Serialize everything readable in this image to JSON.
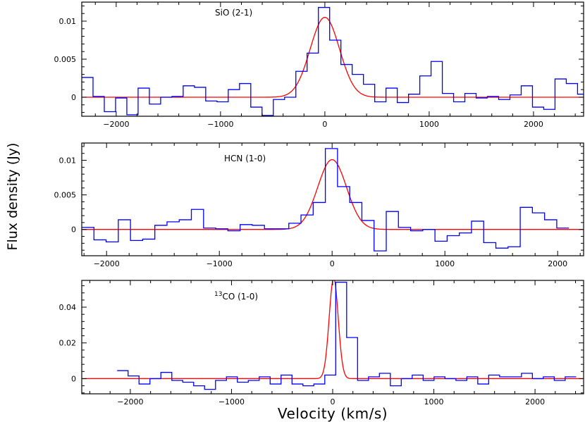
{
  "figure": {
    "ylabel": "Flux density (Jy)",
    "xlabel": "Velocity (km/s)"
  },
  "colors": {
    "spectrum": "#0000ff",
    "fit": "#ff0000"
  },
  "chart_data": [
    {
      "type": "line",
      "title": "SiO (2-1)",
      "xlim": [
        -2330,
        2480
      ],
      "ylim": [
        -0.0025,
        0.0125
      ],
      "xticks": [
        -2000,
        -1000,
        0,
        1000,
        2000
      ],
      "xtick_labels": [
        "−2000",
        "−1000",
        "0",
        "1000",
        "2000"
      ],
      "yticks": [
        0,
        0.005,
        0.01
      ],
      "ytick_labels": [
        "0",
        "0.005",
        "0.01"
      ],
      "channel_width": 108,
      "channel_start": -2330,
      "series": [
        {
          "style": "steps",
          "values": [
            0.0026,
            0.0001,
            -0.0019,
            -0.0001,
            -0.0023,
            0.0012,
            -0.0009,
            0.0,
            0.0001,
            0.0015,
            0.0013,
            -0.0005,
            -0.0006,
            0.001,
            0.0018,
            -0.0013,
            -0.0024,
            -0.0003,
            0.0,
            0.0034,
            0.0058,
            0.0118,
            0.0075,
            0.0043,
            0.003,
            0.0017,
            -0.0006,
            0.0012,
            -0.0007,
            0.0004,
            0.0028,
            0.0047,
            0.0005,
            -0.0006,
            0.0005,
            -0.0001,
            0.0001,
            -0.0003,
            0.0003,
            0.0015,
            -0.0013,
            -0.0016,
            0.0024,
            0.0018,
            0.0004,
            -0.0025,
            0.0012
          ]
        },
        {
          "style": "gaussian",
          "amplitude": 0.0105,
          "center": 0,
          "fwhm": 330
        }
      ]
    },
    {
      "type": "line",
      "title": "HCN (1-0)",
      "xlim": [
        -2220,
        2230
      ],
      "ylim": [
        -0.0038,
        0.0125
      ],
      "xticks": [
        -2000,
        -1000,
        0,
        1000,
        2000
      ],
      "xtick_labels": [
        "−2000",
        "−1000",
        "0",
        "1000",
        "2000"
      ],
      "yticks": [
        0,
        0.005,
        0.01
      ],
      "ytick_labels": [
        "0",
        "0.005",
        "0.01"
      ],
      "channel_width": 108,
      "channel_start": -2220,
      "series": [
        {
          "style": "steps",
          "values": [
            0.0003,
            -0.0015,
            -0.0018,
            0.0014,
            -0.0016,
            -0.0014,
            0.0006,
            0.0011,
            0.0014,
            0.0029,
            0.0002,
            0.0001,
            -0.0002,
            0.0007,
            0.0006,
            0.0001,
            0.0001,
            0.0009,
            0.0021,
            0.0039,
            0.0117,
            0.0062,
            0.0039,
            0.0013,
            -0.0031,
            0.0026,
            0.0003,
            -0.0002,
            0.0,
            -0.0017,
            -0.0009,
            -0.0005,
            0.0012,
            -0.0019,
            -0.0027,
            -0.0025,
            0.0032,
            0.0024,
            0.0014,
            0.0002
          ]
        },
        {
          "style": "gaussian",
          "amplitude": 0.0101,
          "center": 0,
          "fwhm": 300
        }
      ]
    },
    {
      "type": "line",
      "title": "13CO (1-0)",
      "title_superscript": "13",
      "title_main": "CO (1-0)",
      "xlim": [
        -2480,
        2480
      ],
      "ylim": [
        -0.0085,
        0.055
      ],
      "xticks": [
        -2000,
        -1000,
        0,
        1000,
        2000
      ],
      "xtick_labels": [
        "−2000",
        "−1000",
        "0",
        "1000",
        "2000"
      ],
      "yticks": [
        0,
        0.02,
        0.04
      ],
      "ytick_labels": [
        "0",
        "0.02",
        "0.04"
      ],
      "channel_width": 108,
      "channel_start": -2130,
      "series": [
        {
          "style": "steps",
          "values": [
            0.0045,
            0.0015,
            -0.003,
            0.0,
            0.0035,
            -0.001,
            -0.002,
            -0.004,
            -0.006,
            -0.001,
            0.001,
            -0.002,
            -0.001,
            0.001,
            -0.003,
            0.002,
            -0.003,
            -0.004,
            -0.003,
            0.002,
            0.054,
            0.023,
            -0.001,
            0.001,
            0.003,
            -0.004,
            0.0,
            0.002,
            -0.001,
            0.001,
            0.0,
            -0.001,
            0.001,
            -0.003,
            0.002,
            0.001,
            0.001,
            0.003,
            0.0,
            0.001,
            -0.001,
            0.001
          ]
        },
        {
          "style": "gaussian",
          "amplitude": 0.0565,
          "center": 10,
          "fwhm": 105
        }
      ]
    }
  ]
}
